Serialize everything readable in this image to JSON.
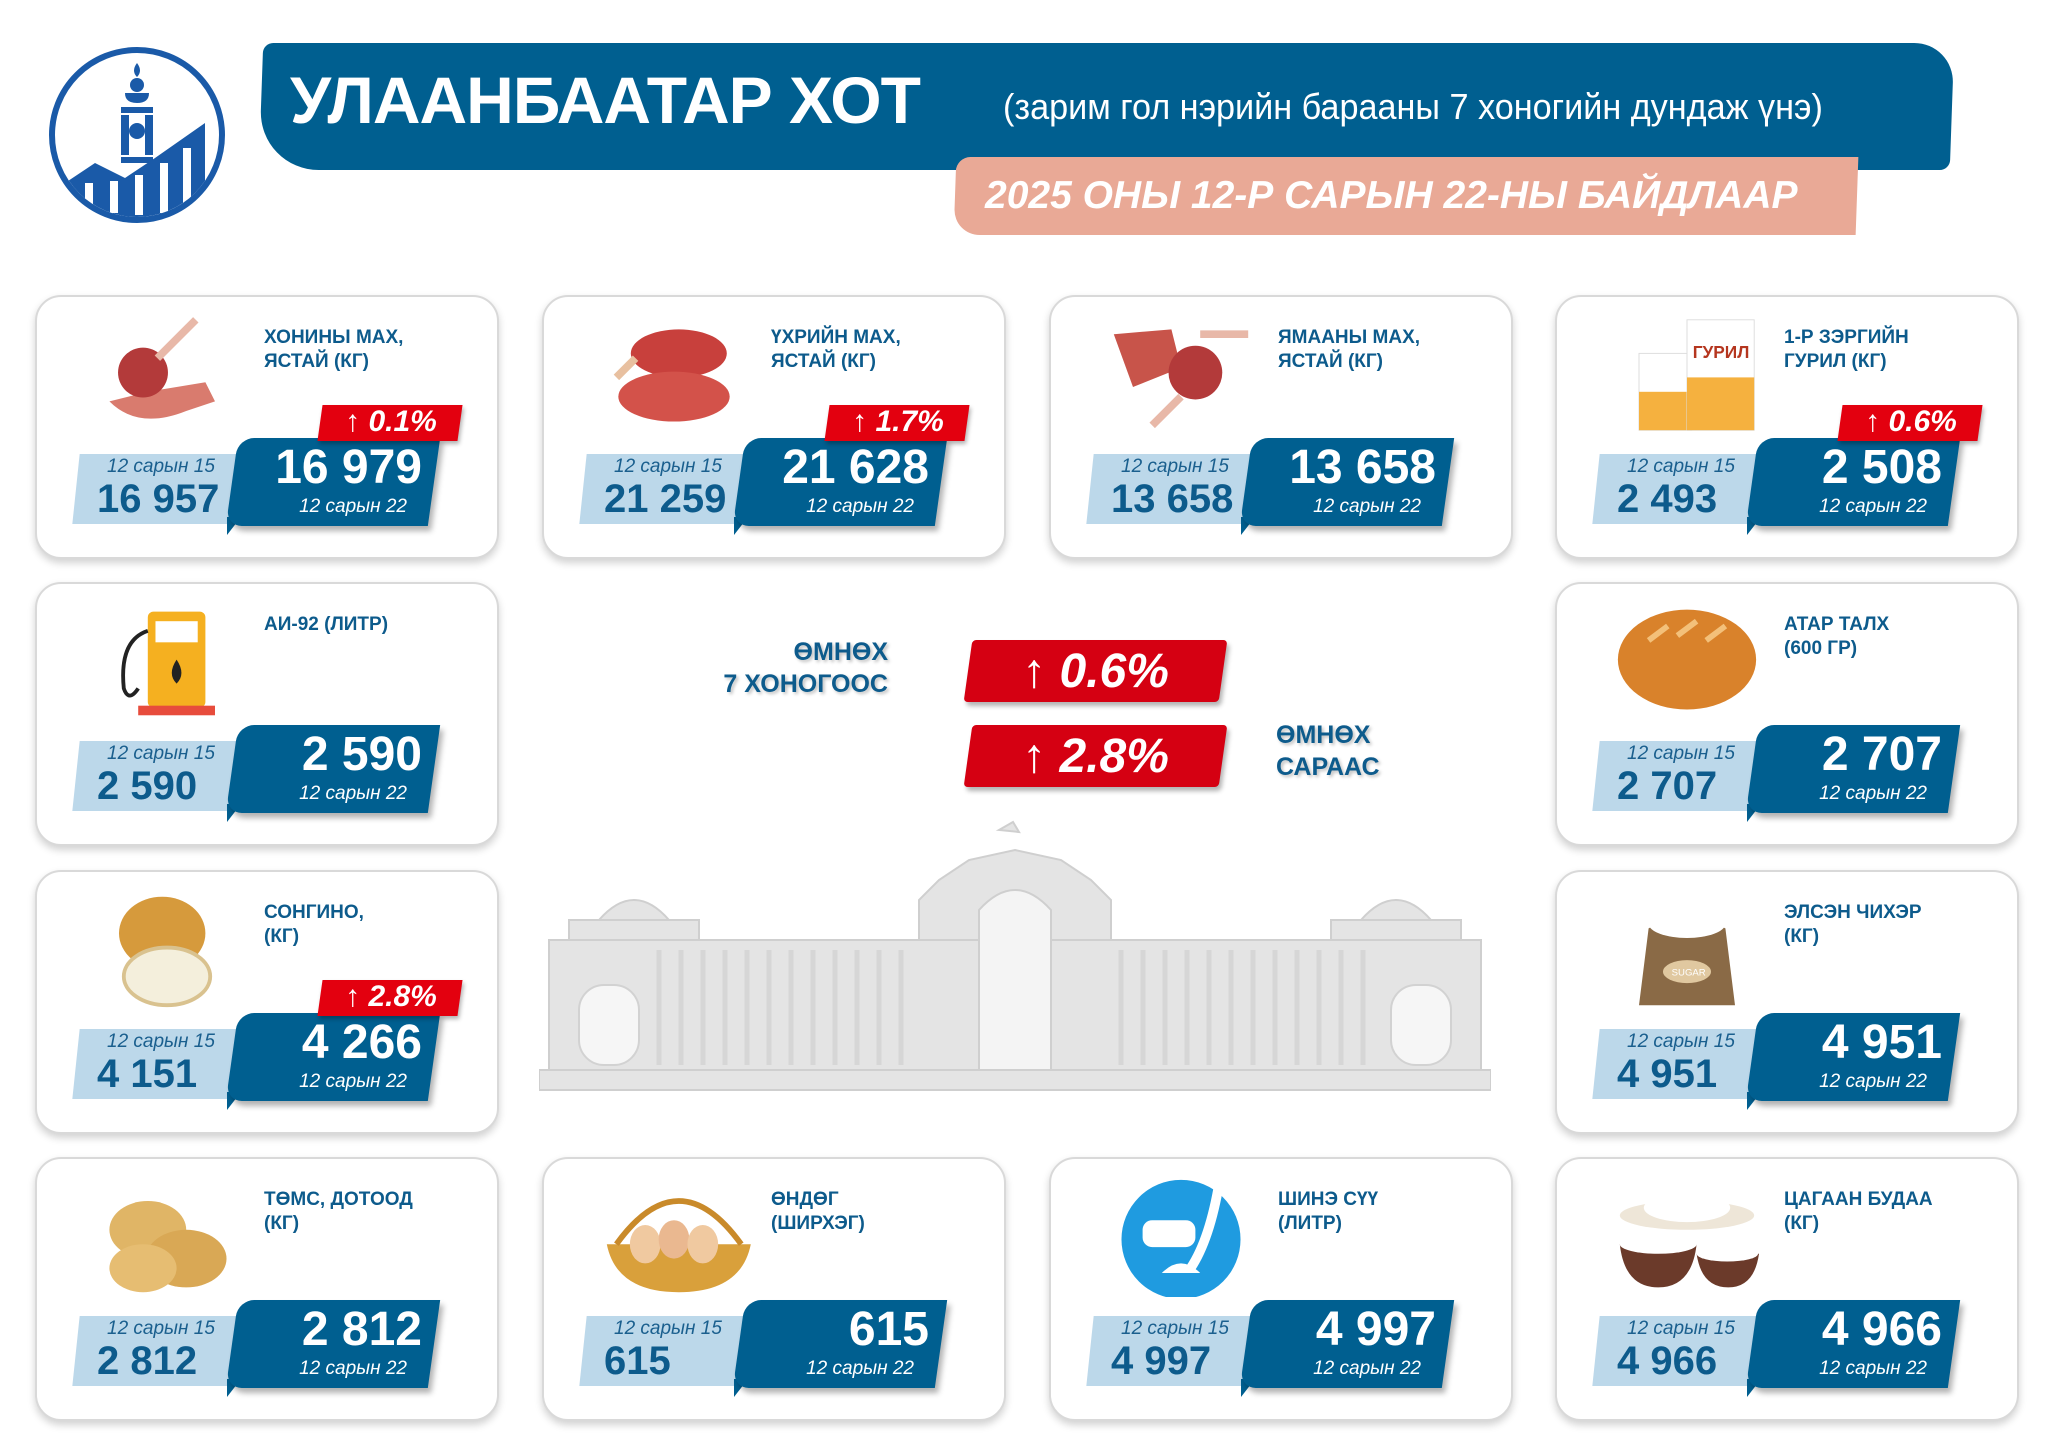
{
  "header": {
    "title": "УЛААНБААТАР ХОТ",
    "subtitle": "(зарим гол нэрийн барааны 7 хоногийн дундаж үнэ)",
    "date": "2025 ОНЫ 12-Р САРЫН 22-НЫ БАЙДЛААР"
  },
  "colors": {
    "primary": "#005f90",
    "light": "#bcd8ea",
    "accent": "#e3000f",
    "salmon": "#e9a996"
  },
  "labels": {
    "prev_date": "12 сарын 15",
    "curr_date": "12 сарын 22"
  },
  "summary": {
    "week_label": "ӨМНӨХ\n7 ХОНОГООС",
    "week_change": "↑ 0.6%",
    "month_label": "ӨМНӨХ\nСАРААС",
    "month_change": "↑ 2.8%"
  },
  "items": [
    {
      "name": "ХОНИНЫ МАХ,\nЯСТАЙ (КГ)",
      "icon": "mutton-icon",
      "prev": "16 957",
      "curr": "16 979",
      "change": "↑ 0.1%"
    },
    {
      "name": "ҮХРИЙН МАХ,\nЯСТАЙ (КГ)",
      "icon": "beef-icon",
      "prev": "21 259",
      "curr": "21 628",
      "change": "↑ 1.7%"
    },
    {
      "name": "ЯМААНЫ МАХ,\nЯСТАЙ (КГ)",
      "icon": "goat-meat-icon",
      "prev": "13 658",
      "curr": "13 658",
      "change": ""
    },
    {
      "name": "1-Р ЗЭРГИЙН\nГУРИЛ (КГ)",
      "icon": "flour-icon",
      "prev": "2 493",
      "curr": "2 508",
      "change": "↑ 0.6%",
      "pack_text": "ГУРИЛ"
    },
    {
      "name": "АИ-92 (ЛИТР)",
      "icon": "fuel-pump-icon",
      "prev": "2 590",
      "curr": "2 590",
      "change": ""
    },
    {
      "name": "АТАР ТАЛХ\n (600 ГР)",
      "icon": "bread-icon",
      "prev": "2 707",
      "curr": "2 707",
      "change": ""
    },
    {
      "name": "СОНГИНО,\n(КГ)",
      "icon": "onion-icon",
      "prev": "4 151",
      "curr": "4 266",
      "change": "↑ 2.8%"
    },
    {
      "name": "ЭЛСЭН ЧИХЭР\n(КГ)",
      "icon": "sugar-icon",
      "prev": "4 951",
      "curr": "4 951",
      "change": "",
      "pack_text": "SUGAR"
    },
    {
      "name": "ТӨМС, ДОТООД\n(КГ)",
      "icon": "potato-icon",
      "prev": "2 812",
      "curr": "2 812",
      "change": ""
    },
    {
      "name": "ӨНДӨГ\n(ШИРХЭГ)",
      "icon": "eggs-icon",
      "prev": "615",
      "curr": "615",
      "change": ""
    },
    {
      "name": "ШИНЭ СҮҮ\n(ЛИТР)",
      "icon": "milk-icon",
      "prev": "4 997",
      "curr": "4 997",
      "change": ""
    },
    {
      "name": "ЦАГААН БУДАА\n(КГ)",
      "icon": "rice-icon",
      "prev": "4 966",
      "curr": "4 966",
      "change": ""
    }
  ]
}
